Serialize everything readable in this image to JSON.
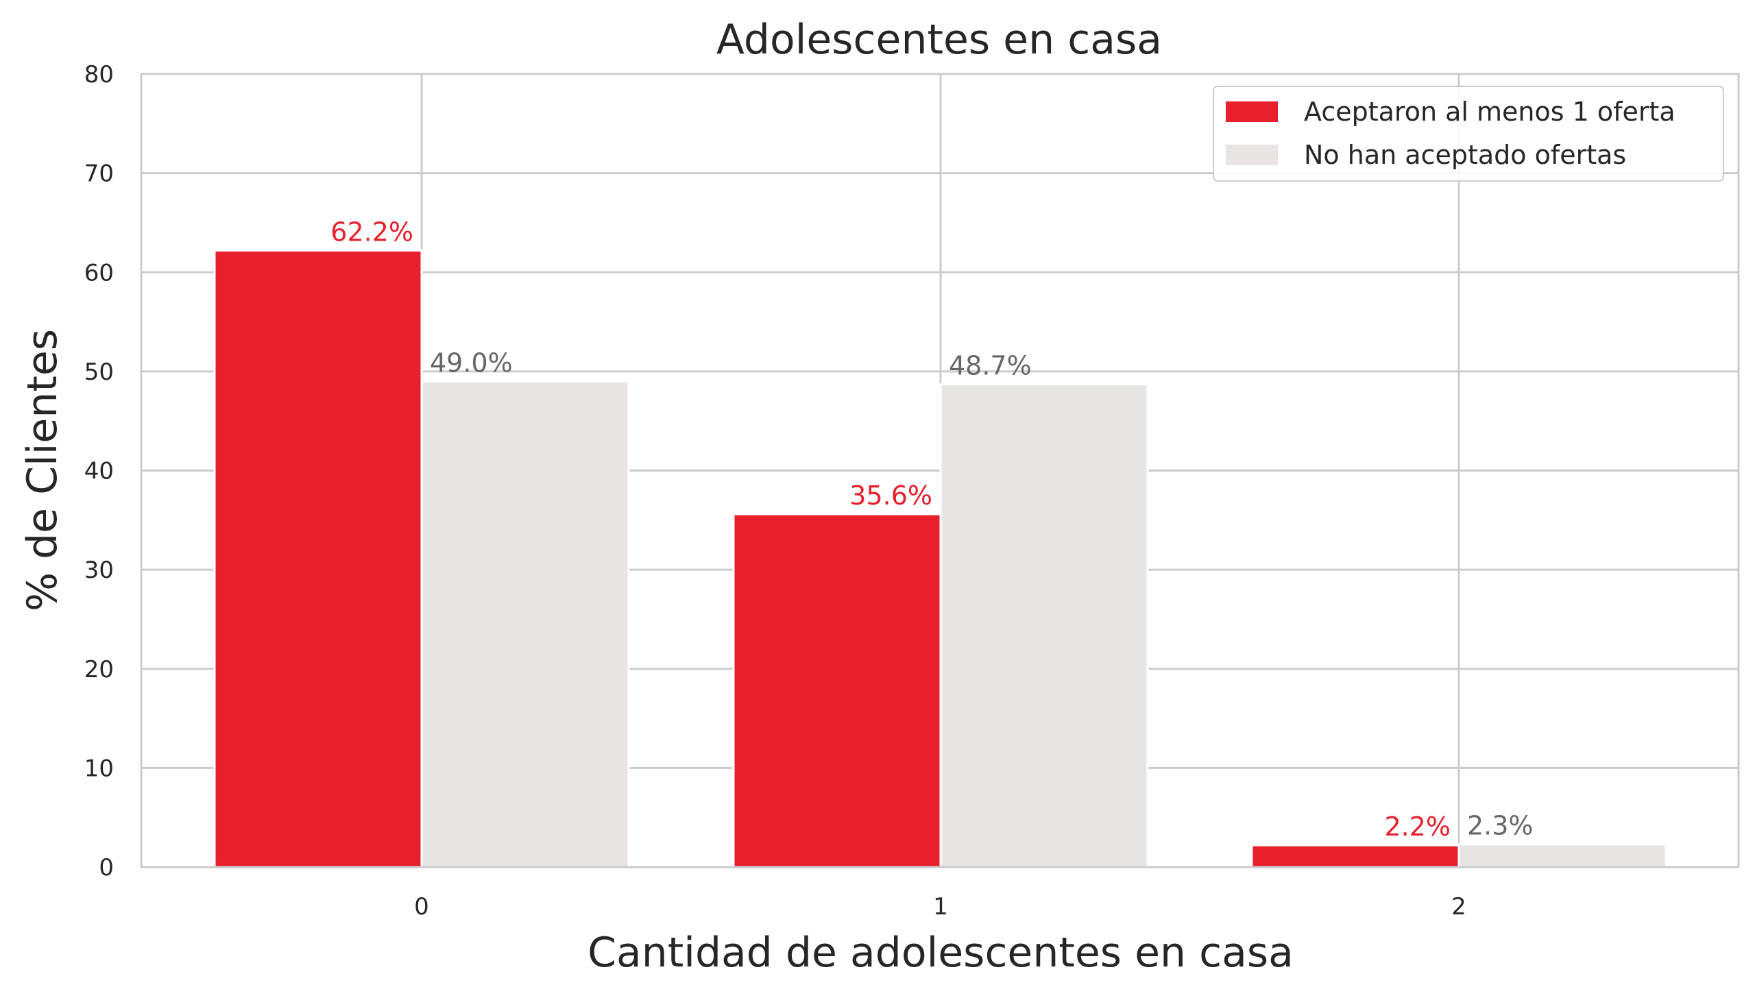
{
  "chart_data": {
    "type": "bar",
    "title": "Adolescentes en casa",
    "xlabel": "Cantidad de adolescentes en casa",
    "ylabel": "% de Clientes",
    "categories": [
      "0",
      "1",
      "2"
    ],
    "ylim": [
      0,
      80
    ],
    "yticks": [
      "0",
      "10",
      "20",
      "30",
      "40",
      "50",
      "60",
      "70",
      "80"
    ],
    "grid": true,
    "legend_position": "top-right",
    "series": [
      {
        "name": "Aceptaron al menos 1 oferta",
        "values": [
          62.2,
          35.6,
          2.2
        ],
        "labels": [
          "62.2%",
          "35.6%",
          "2.2%"
        ],
        "color": "#e8202e",
        "label_color": "#e8202e"
      },
      {
        "name": "No han aceptado ofertas",
        "values": [
          49.0,
          48.7,
          2.3
        ],
        "labels": [
          "49.0%",
          "48.7%",
          "2.3%"
        ],
        "color": "#e9e5e5",
        "label_color": "#666666"
      }
    ]
  }
}
